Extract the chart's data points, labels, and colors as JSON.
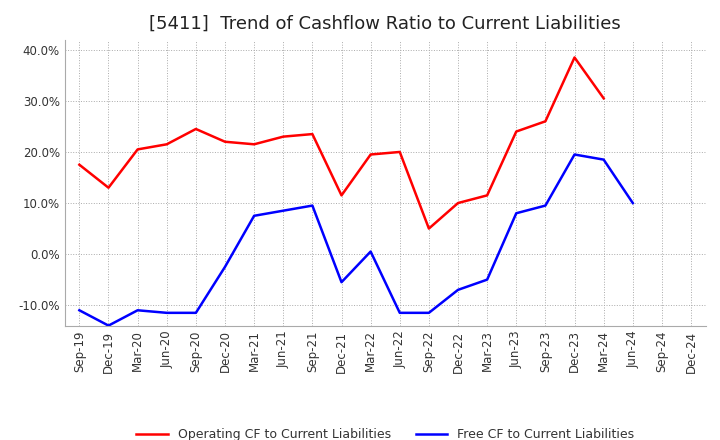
{
  "title": "[5411]  Trend of Cashflow Ratio to Current Liabilities",
  "x_labels": [
    "Sep-19",
    "Dec-19",
    "Mar-20",
    "Jun-20",
    "Sep-20",
    "Dec-20",
    "Mar-21",
    "Jun-21",
    "Sep-21",
    "Dec-21",
    "Mar-22",
    "Jun-22",
    "Sep-22",
    "Dec-22",
    "Mar-23",
    "Jun-23",
    "Sep-23",
    "Dec-23",
    "Mar-24",
    "Jun-24",
    "Sep-24",
    "Dec-24"
  ],
  "operating_cf": [
    17.5,
    13.0,
    20.5,
    21.5,
    24.5,
    22.0,
    21.5,
    23.0,
    23.5,
    11.5,
    19.5,
    20.0,
    5.0,
    10.0,
    11.5,
    24.0,
    26.0,
    38.5,
    30.5,
    null,
    null,
    null
  ],
  "free_cf": [
    -11.0,
    -14.0,
    -11.0,
    -11.5,
    -11.5,
    -2.5,
    7.5,
    8.5,
    9.5,
    -5.5,
    0.5,
    -11.5,
    -11.5,
    -7.0,
    -5.0,
    8.0,
    9.5,
    19.5,
    18.5,
    10.0,
    null,
    null
  ],
  "operating_color": "#ff0000",
  "free_color": "#0000ff",
  "ylim": [
    -14.0,
    42.0
  ],
  "yticks": [
    -10.0,
    0.0,
    10.0,
    20.0,
    30.0,
    40.0
  ],
  "background_color": "#ffffff",
  "grid_color": "#aaaaaa",
  "title_fontsize": 13,
  "tick_fontsize": 8.5,
  "legend_fontsize": 9,
  "linewidth": 1.8
}
